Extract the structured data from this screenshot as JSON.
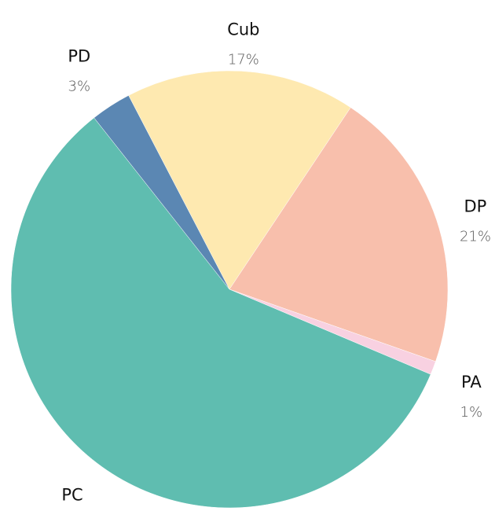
{
  "chart_data": {
    "type": "pie",
    "categories": [
      "Cub",
      "DP",
      "PA",
      "PC",
      "PD"
    ],
    "values": [
      17,
      21,
      1,
      58,
      3
    ],
    "value_labels": [
      "17%",
      "21%",
      "1%",
      "58%",
      "3%"
    ],
    "colors": [
      "#fee9b0",
      "#f8bfac",
      "#f8d1e1",
      "#5fbdb0",
      "#5b87b3"
    ]
  }
}
